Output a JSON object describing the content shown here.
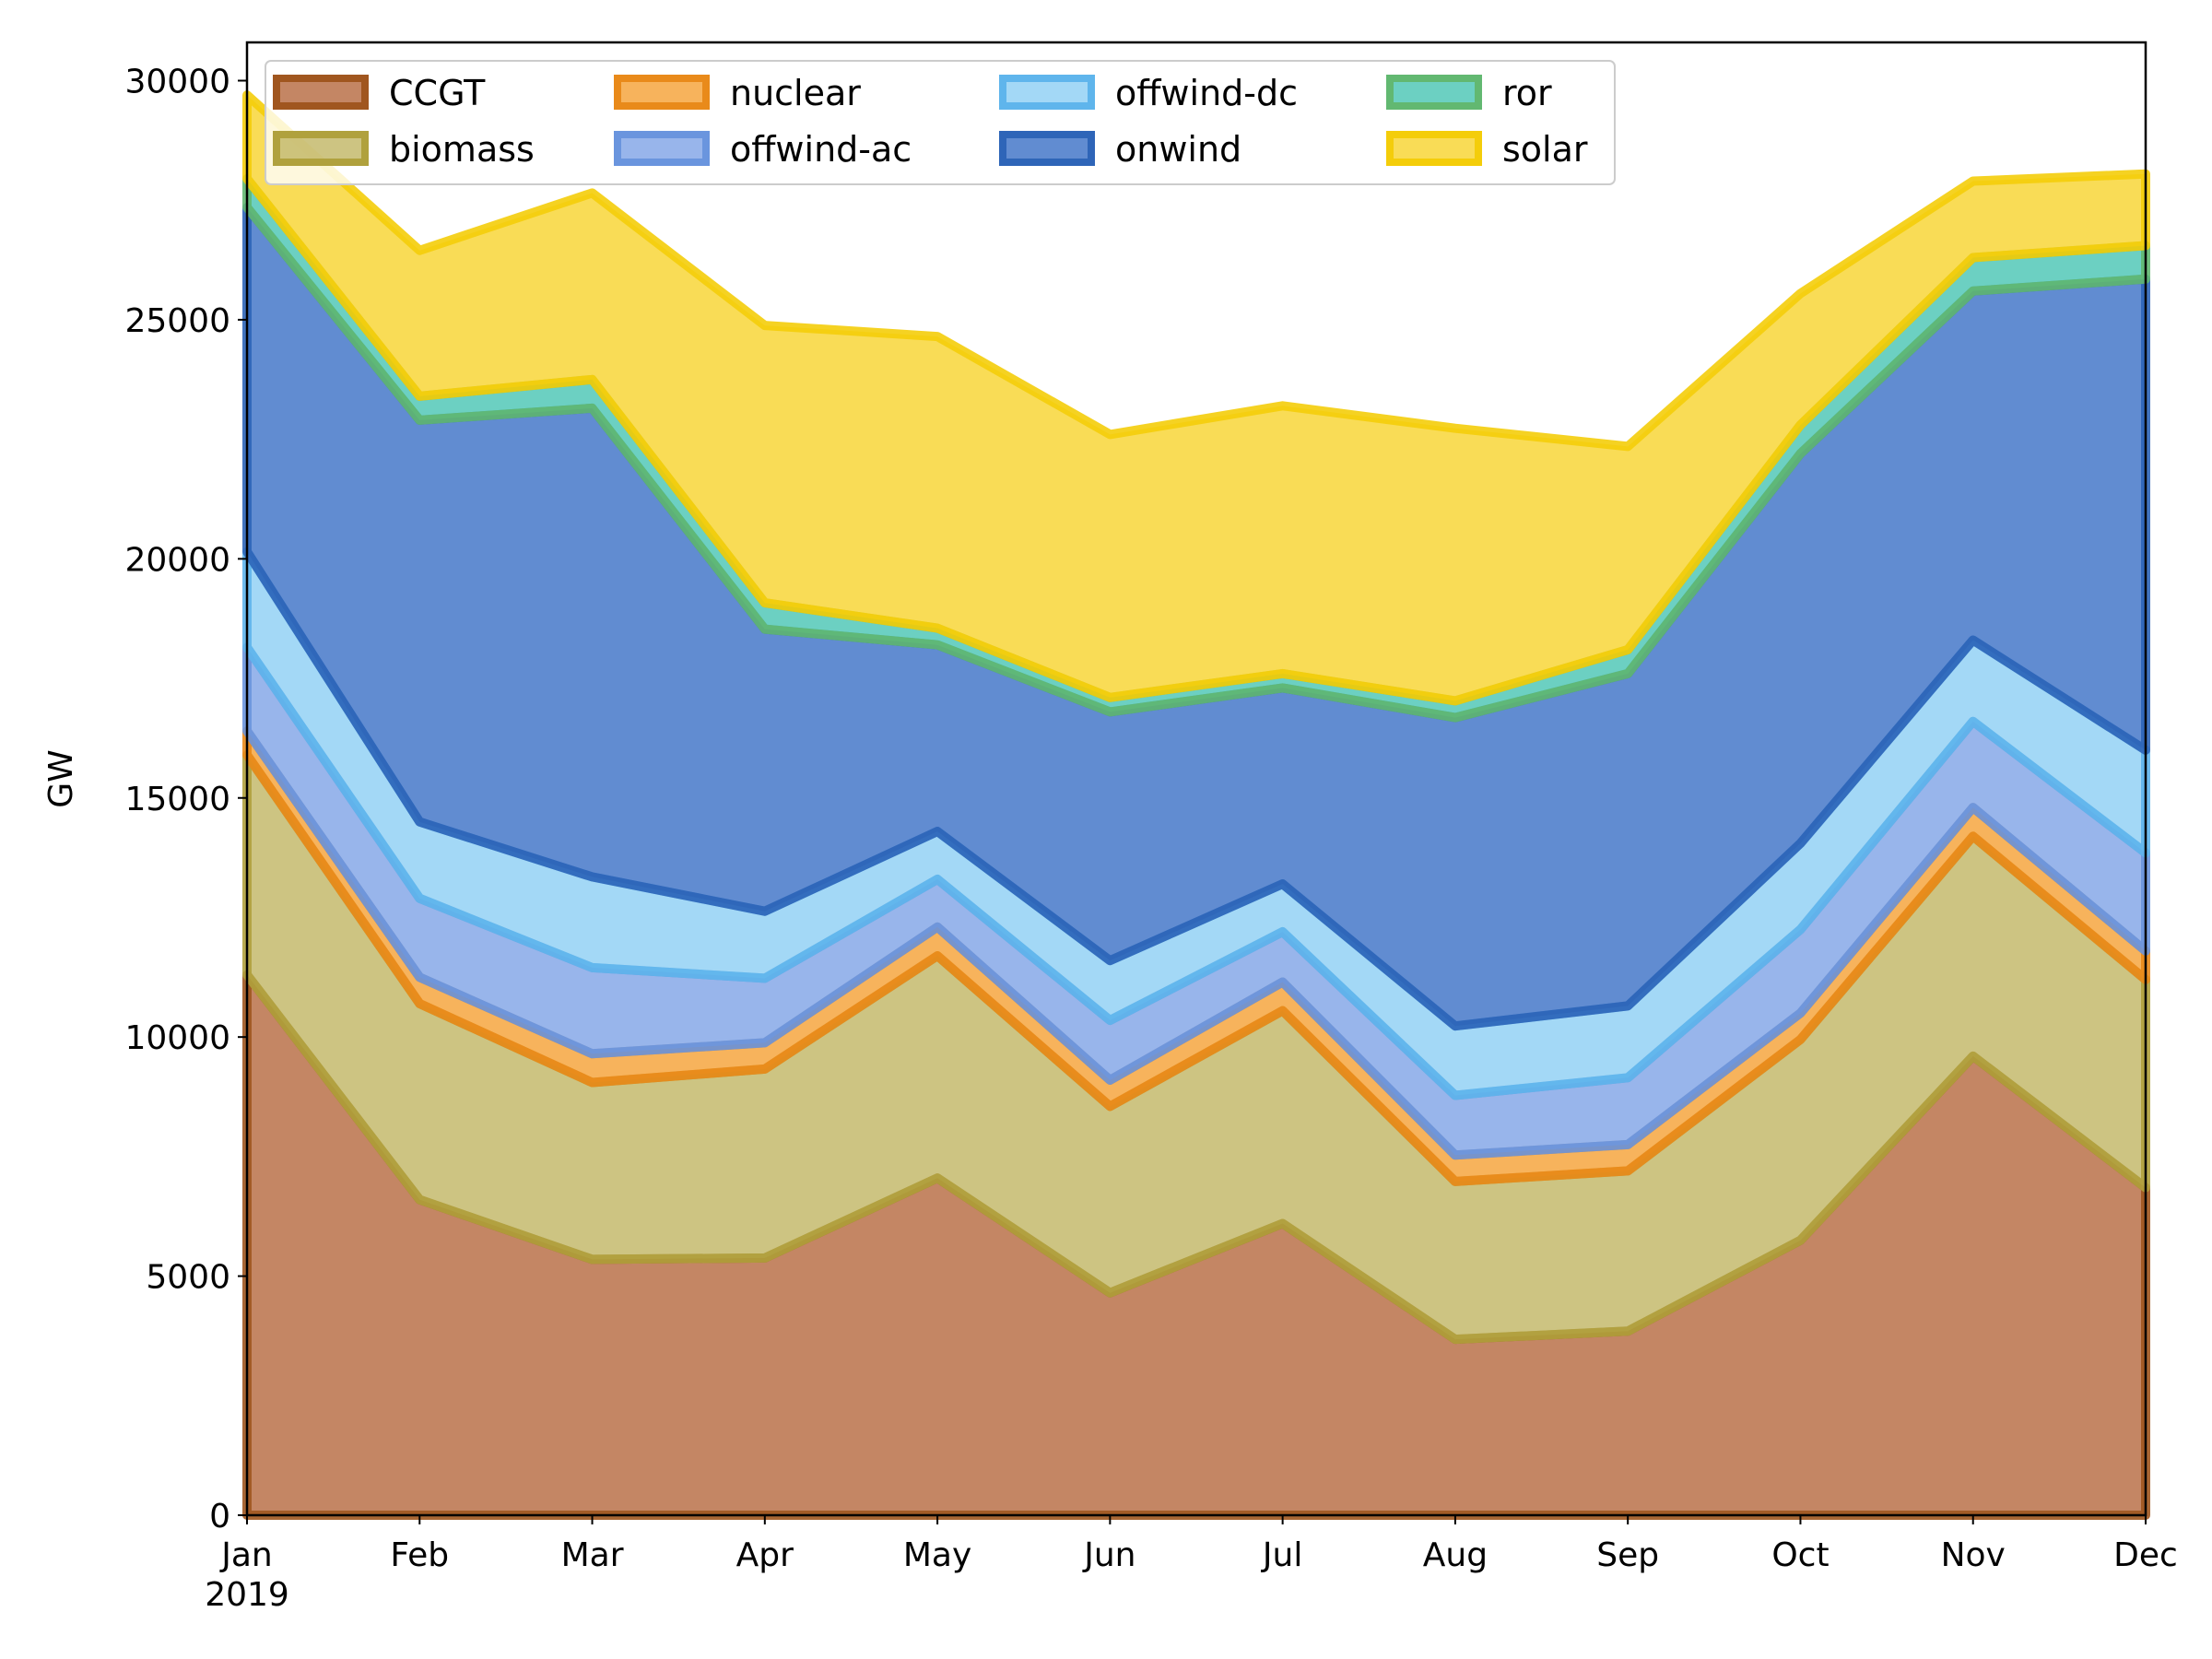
{
  "chart_data": {
    "type": "area",
    "stacked": true,
    "title": "",
    "xlabel": "",
    "ylabel": "GW",
    "ylim": [
      0,
      30800
    ],
    "yticks": [
      0,
      5000,
      10000,
      15000,
      20000,
      25000,
      30000
    ],
    "x_tick_labels": [
      "Jan",
      "Feb",
      "Mar",
      "Apr",
      "May",
      "Jun",
      "Jul",
      "Aug",
      "Sep",
      "Oct",
      "Nov",
      "Dec"
    ],
    "x_year_label": "2019",
    "categories": [
      "Jan",
      "Feb",
      "Mar",
      "Apr",
      "May",
      "Jun",
      "Jul",
      "Aug",
      "Sep",
      "Oct",
      "Nov",
      "Dec"
    ],
    "grid": false,
    "legend_position": "upper-left",
    "legend_columns": 4,
    "series": [
      {
        "name": "CCGT",
        "color": "#b5683d",
        "edge": "#a0561f",
        "values": [
          11300,
          6600,
          5350,
          5380,
          7050,
          4650,
          6100,
          3680,
          3850,
          5750,
          9600,
          6850
        ]
      },
      {
        "name": "biomass",
        "color": "#c1b563",
        "edge": "#b0a13d",
        "values": [
          4600,
          4100,
          3700,
          3950,
          4650,
          3900,
          4450,
          3300,
          3350,
          4200,
          4600,
          4350
        ]
      },
      {
        "name": "nuclear",
        "color": "#f5a033",
        "edge": "#e98a1a",
        "values": [
          500,
          550,
          600,
          550,
          600,
          550,
          600,
          550,
          550,
          550,
          600,
          600
        ]
      },
      {
        "name": "offwind-ac",
        "color": "#7ea2e6",
        "edge": "#6a95de",
        "values": [
          1750,
          1650,
          1800,
          1350,
          1000,
          1250,
          1050,
          1250,
          1400,
          1750,
          1800,
          2050
        ]
      },
      {
        "name": "offwind-dc",
        "color": "#8ccef4",
        "edge": "#5fb5ec",
        "values": [
          2000,
          1600,
          1900,
          1400,
          1000,
          1250,
          1000,
          1450,
          1500,
          1800,
          1700,
          2150
        ]
      },
      {
        "name": "onwind",
        "color": "#3a6fc5",
        "edge": "#2e65b8",
        "values": [
          7200,
          8400,
          9800,
          5900,
          3900,
          5200,
          4100,
          6450,
          6950,
          8150,
          7300,
          9850
        ]
      },
      {
        "name": "ror",
        "color": "#47c4b3",
        "edge": "#62b871",
        "values": [
          600,
          500,
          600,
          550,
          350,
          300,
          300,
          350,
          500,
          600,
          700,
          700
        ]
      },
      {
        "name": "solar",
        "color": "#f7d32c",
        "edge": "#f4cd0a",
        "values": [
          1750,
          3050,
          3900,
          5800,
          6100,
          5500,
          5600,
          5700,
          4250,
          2750,
          1600,
          1500
        ]
      }
    ]
  }
}
